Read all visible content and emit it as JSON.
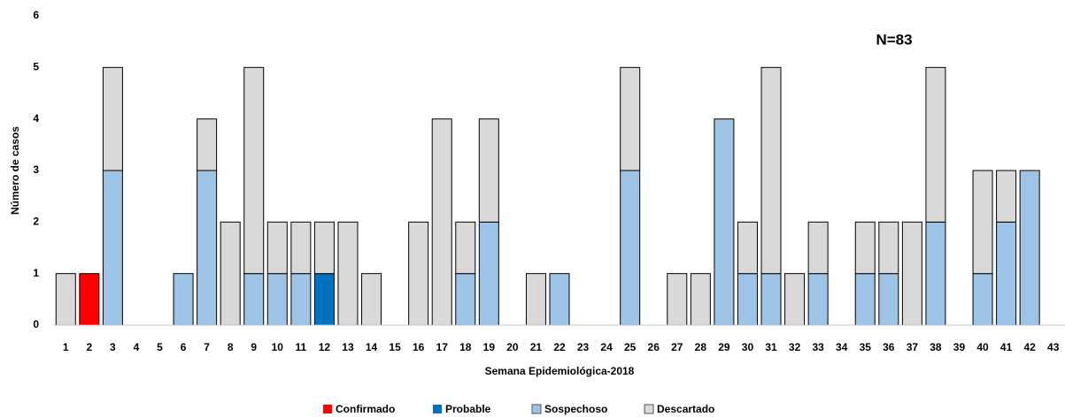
{
  "chart_data": {
    "type": "stacked-bar",
    "annotation": "N=83",
    "x_label": "Semana Epidemiológica-2018",
    "y_label": "Número de casos",
    "categories": [
      "1",
      "2",
      "3",
      "4",
      "5",
      "6",
      "7",
      "8",
      "9",
      "10",
      "11",
      "12",
      "13",
      "14",
      "15",
      "16",
      "17",
      "18",
      "19",
      "20",
      "21",
      "22",
      "23",
      "24",
      "25",
      "26",
      "27",
      "28",
      "29",
      "30",
      "31",
      "32",
      "33",
      "34",
      "35",
      "36",
      "37",
      "38",
      "39",
      "40",
      "41",
      "42",
      "43"
    ],
    "series": [
      {
        "name": "Confirmado",
        "color": "#ff0000",
        "values": [
          0,
          1,
          0,
          0,
          0,
          0,
          0,
          0,
          0,
          0,
          0,
          0,
          0,
          0,
          0,
          0,
          0,
          0,
          0,
          0,
          0,
          0,
          0,
          0,
          0,
          0,
          0,
          0,
          0,
          0,
          0,
          0,
          0,
          0,
          0,
          0,
          0,
          0,
          0,
          0,
          0,
          0,
          0
        ]
      },
      {
        "name": "Probable",
        "color": "#0070c0",
        "values": [
          0,
          0,
          0,
          0,
          0,
          0,
          0,
          0,
          0,
          0,
          0,
          1,
          0,
          0,
          0,
          0,
          0,
          0,
          0,
          0,
          0,
          0,
          0,
          0,
          0,
          0,
          0,
          0,
          0,
          0,
          0,
          0,
          0,
          0,
          0,
          0,
          0,
          0,
          0,
          0,
          0,
          0,
          0
        ]
      },
      {
        "name": "Sospechoso",
        "color": "#9dc3e6",
        "values": [
          0,
          0,
          3,
          0,
          0,
          1,
          3,
          0,
          1,
          1,
          1,
          0,
          0,
          0,
          0,
          0,
          0,
          1,
          2,
          0,
          0,
          1,
          0,
          0,
          3,
          0,
          0,
          0,
          4,
          1,
          1,
          0,
          1,
          0,
          1,
          1,
          0,
          2,
          0,
          1,
          2,
          3,
          0
        ]
      },
      {
        "name": "Descartado",
        "color": "#d9d9d9",
        "values": [
          1,
          0,
          2,
          0,
          0,
          0,
          1,
          2,
          4,
          1,
          1,
          1,
          2,
          1,
          0,
          2,
          4,
          1,
          2,
          0,
          1,
          0,
          0,
          0,
          2,
          0,
          1,
          1,
          0,
          1,
          4,
          1,
          1,
          0,
          1,
          1,
          2,
          3,
          0,
          2,
          1,
          0,
          0
        ]
      }
    ],
    "ylim": [
      0,
      6
    ],
    "yticks": [
      0,
      1,
      2,
      3,
      4,
      5,
      6
    ],
    "grid": false
  }
}
